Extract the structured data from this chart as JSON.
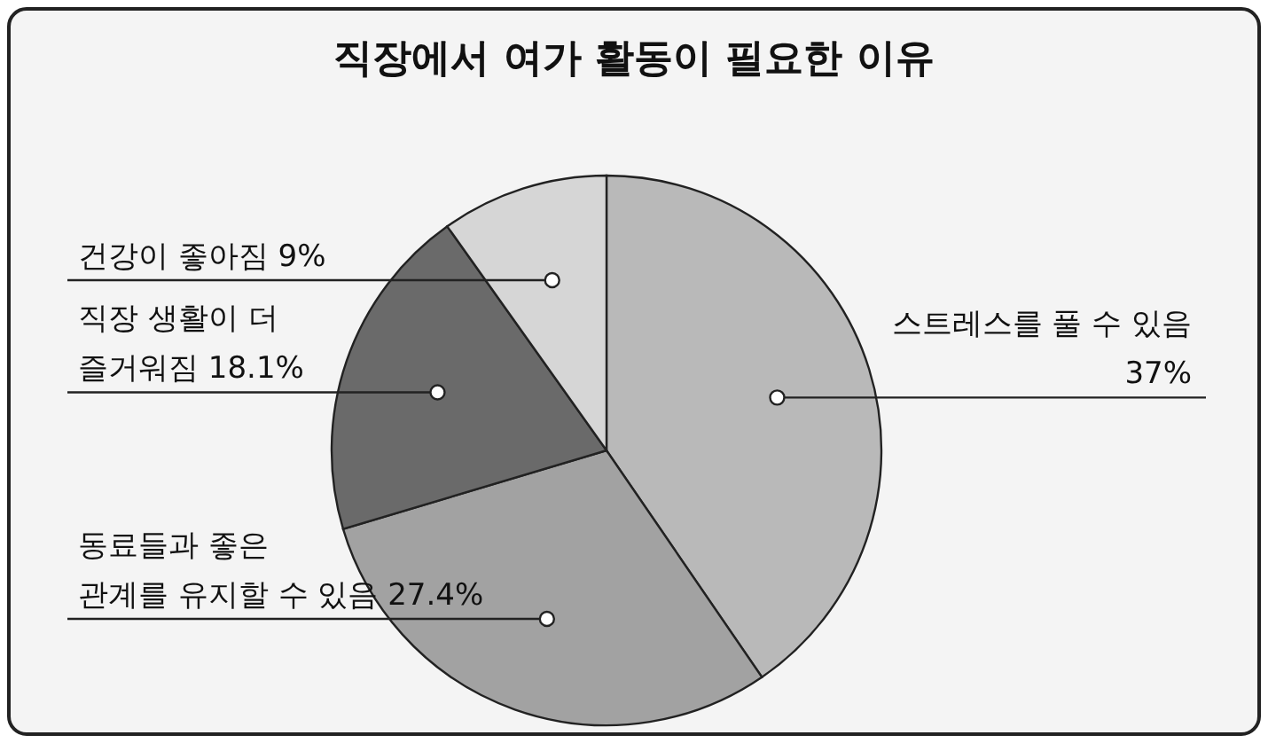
{
  "chart_data": {
    "type": "pie",
    "title": "직장에서 여가 활동이 필요한 이유",
    "categories": [
      "스트레스를 풀 수 있음",
      "동료들과 좋은\n관계를 유지할 수 있음",
      "직장 생활이 더\n즐거워짐",
      "건강이 좋아짐"
    ],
    "values": [
      37,
      27.4,
      18.1,
      9
    ],
    "value_labels": [
      "37%",
      "27.4%",
      "18.1%",
      "9%"
    ],
    "colors": [
      "#b9b9b9",
      "#a2a2a2",
      "#6a6a6a",
      "#d6d6d6"
    ]
  }
}
